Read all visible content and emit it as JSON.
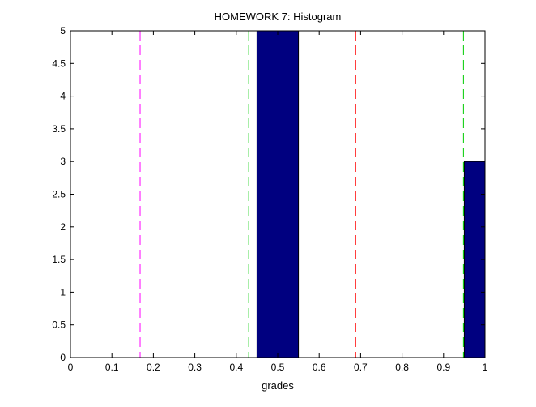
{
  "chart_data": {
    "type": "bar",
    "title": "HOMEWORK 7: Histogram",
    "xlabel": "grades",
    "ylabel": "",
    "xlim": [
      0,
      1
    ],
    "ylim": [
      0,
      5
    ],
    "xticks": [
      0,
      0.1,
      0.2,
      0.3,
      0.4,
      0.5,
      0.6,
      0.7,
      0.8,
      0.9,
      1
    ],
    "xtick_labels": [
      "0",
      "0.1",
      "0.2",
      "0.3",
      "0.4",
      "0.5",
      "0.6",
      "0.7",
      "0.8",
      "0.9",
      "1"
    ],
    "yticks": [
      0,
      0.5,
      1,
      1.5,
      2,
      2.5,
      3,
      3.5,
      4,
      4.5,
      5
    ],
    "ytick_labels": [
      "0",
      "0.5",
      "1",
      "1.5",
      "2",
      "2.5",
      "3",
      "3.5",
      "4",
      "4.5",
      "5"
    ],
    "bars": [
      {
        "x0": 0.45,
        "x1": 0.55,
        "value": 5
      },
      {
        "x0": 0.95,
        "x1": 1.05,
        "value": 3
      }
    ],
    "bar_color": "#000080",
    "vlines": [
      {
        "x": 0.168,
        "color": "#ff00ff",
        "style": "dashed"
      },
      {
        "x": 0.43,
        "color": "#00cc00",
        "style": "dashed"
      },
      {
        "x": 0.688,
        "color": "#ff0000",
        "style": "dashed"
      },
      {
        "x": 0.948,
        "color": "#00cc00",
        "style": "dashed"
      }
    ],
    "grid": false,
    "legend": "none"
  }
}
